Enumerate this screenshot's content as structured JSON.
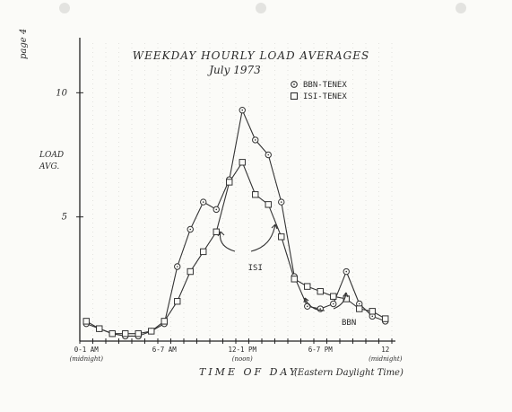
{
  "page_label": "page 4",
  "chart_data": {
    "type": "line",
    "title": "WEEKDAY HOURLY LOAD AVERAGES",
    "subtitle": "July 1973",
    "xlabel": "TIME OF DAY",
    "xlabel_note": "(Eastern Daylight Time)",
    "ylabel_line1": "LOAD",
    "ylabel_line2": "AVG.",
    "ylim": [
      0,
      12
    ],
    "xlim": [
      0,
      24
    ],
    "x_ticks": [
      {
        "x": 0.5,
        "label": "0-1 AM",
        "sub": "(midnight)"
      },
      {
        "x": 6.5,
        "label": "6-7 AM",
        "sub": ""
      },
      {
        "x": 12.5,
        "label": "12-1 PM",
        "sub": "(noon)"
      },
      {
        "x": 18.5,
        "label": "6-7 PM",
        "sub": ""
      },
      {
        "x": 23.5,
        "label": "12",
        "sub": "(midnight)"
      }
    ],
    "y_ticks": [
      5,
      10
    ],
    "legend_position": "top-right",
    "x": [
      0.5,
      1.5,
      2.5,
      3.5,
      4.5,
      5.5,
      6.5,
      7.5,
      8.5,
      9.5,
      10.5,
      11.5,
      12.5,
      13.5,
      14.5,
      15.5,
      16.5,
      17.5,
      18.5,
      19.5,
      20.5,
      21.5,
      22.5,
      23.5
    ],
    "series": [
      {
        "name": "BBN-TENEX",
        "marker": "circle",
        "values": [
          0.7,
          0.5,
          0.3,
          0.2,
          0.2,
          0.4,
          0.7,
          3.0,
          4.5,
          5.6,
          5.3,
          6.5,
          9.3,
          8.1,
          7.5,
          5.6,
          2.6,
          1.4,
          1.3,
          1.5,
          2.8,
          1.5,
          1.0,
          0.8
        ]
      },
      {
        "name": "ISI-TENEX",
        "marker": "square",
        "values": [
          0.8,
          0.5,
          0.3,
          0.3,
          0.3,
          0.4,
          0.8,
          1.6,
          2.8,
          3.6,
          4.4,
          6.4,
          7.2,
          5.9,
          5.5,
          4.2,
          2.5,
          2.2,
          2.0,
          1.8,
          1.7,
          1.3,
          1.2,
          0.9
        ]
      }
    ],
    "annotations": [
      {
        "text": "ISI",
        "x": 13.5,
        "y": 3.0
      },
      {
        "text": "BBN",
        "x": 20.7,
        "y": 0.8
      }
    ]
  }
}
